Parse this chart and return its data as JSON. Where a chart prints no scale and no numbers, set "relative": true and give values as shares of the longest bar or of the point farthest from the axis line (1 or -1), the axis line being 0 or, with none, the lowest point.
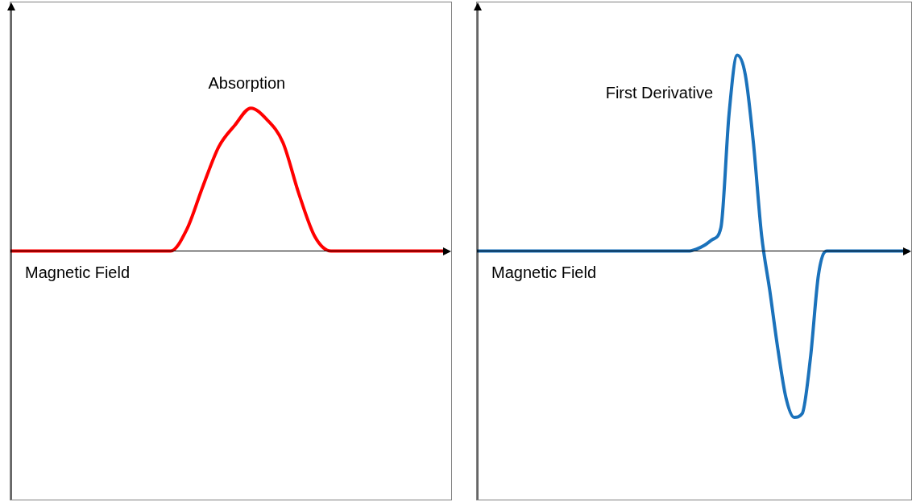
{
  "chart_data": [
    {
      "type": "line",
      "relative": true,
      "xlabel": "Magnetic Field",
      "categories": [
        null,
        null,
        null,
        null,
        null,
        null,
        null,
        null,
        null,
        null,
        null,
        null,
        null,
        null,
        null,
        null,
        null,
        null,
        null,
        null,
        null,
        null,
        null,
        null,
        null,
        null,
        null,
        null
      ],
      "series": [
        {
          "name": "Absorption",
          "color": "#ff0000",
          "values": [
            0,
            0,
            0,
            0,
            0,
            0,
            0,
            0,
            0,
            0,
            0,
            0.15,
            0.45,
            0.73,
            0.88,
            1,
            0.92,
            0.76,
            0.4,
            0.1,
            0,
            0,
            0,
            0,
            0,
            0,
            0,
            0
          ]
        }
      ],
      "legend": false,
      "tick_labels": false,
      "marker": "none",
      "line_style": "solid"
    },
    {
      "type": "line",
      "relative": true,
      "xlabel": "Magnetic Field",
      "categories": [
        null,
        null,
        null,
        null,
        null,
        null,
        null,
        null,
        null,
        null,
        null,
        null,
        null,
        null,
        null,
        null,
        null,
        null,
        null,
        null,
        null,
        null,
        null,
        null,
        null,
        null,
        null,
        null,
        null,
        null,
        null,
        null,
        null,
        null,
        null,
        null,
        null,
        null,
        null,
        null,
        null,
        null,
        null,
        null,
        null,
        null,
        null,
        null,
        null,
        null,
        null,
        null,
        null,
        null
      ],
      "series": [
        {
          "name": "First Derivative",
          "color": "#1b72bb",
          "values": [
            0,
            0,
            0,
            0,
            0,
            0,
            0,
            0,
            0,
            0,
            0,
            0,
            0,
            0,
            0,
            0,
            0,
            0,
            0,
            0,
            0,
            0,
            0,
            0,
            0,
            0,
            0,
            0.01,
            0.03,
            0.06,
            0.12,
            0.7,
            1,
            0.9,
            0.55,
            0.08,
            -0.2,
            -0.5,
            -0.75,
            -0.85,
            -0.83,
            -0.55,
            -0.12,
            0,
            0,
            0,
            0,
            0,
            0,
            0,
            0,
            0,
            0,
            0
          ]
        }
      ],
      "legend": false,
      "tick_labels": false,
      "marker": "none",
      "line_style": "solid"
    }
  ]
}
